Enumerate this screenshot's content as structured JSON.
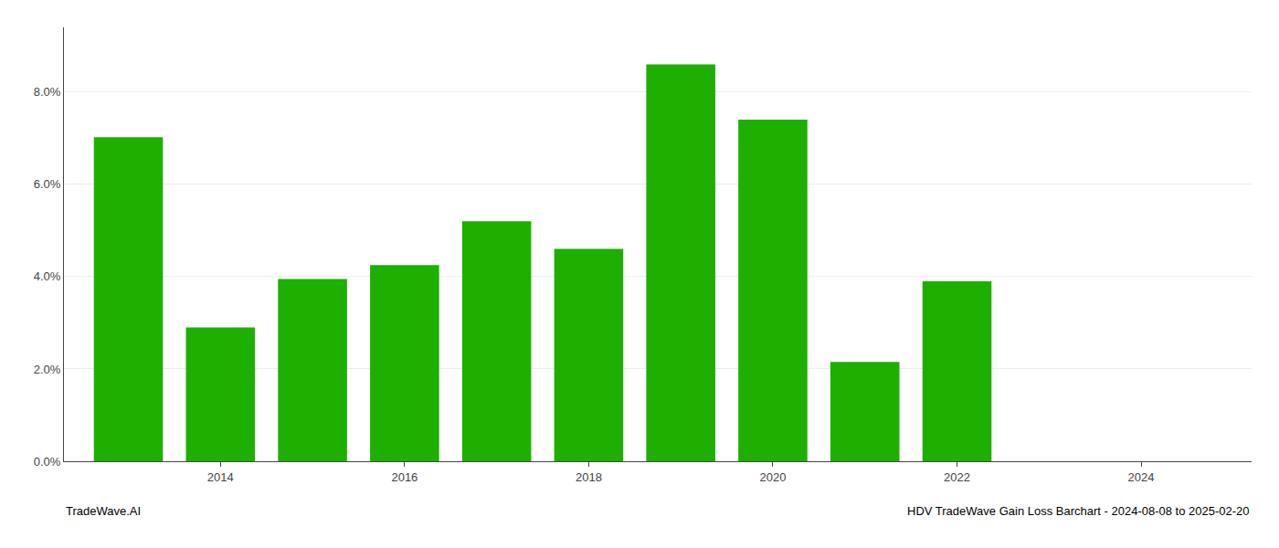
{
  "chart_data": {
    "type": "bar",
    "x": [
      2013,
      2014,
      2015,
      2016,
      2017,
      2018,
      2019,
      2020,
      2021,
      2022
    ],
    "values": [
      0.0702,
      0.029,
      0.0395,
      0.0425,
      0.052,
      0.046,
      0.086,
      0.074,
      0.0215,
      0.039
    ],
    "color": "#1db000",
    "xlim": [
      2012.3,
      2025.2
    ],
    "xticks": [
      2014,
      2016,
      2018,
      2020,
      2022,
      2024
    ],
    "ylim": [
      0.0,
      0.094
    ],
    "yticks": [
      {
        "value": 0.0,
        "label": "0.0%"
      },
      {
        "value": 0.02,
        "label": "2.0%"
      },
      {
        "value": 0.04,
        "label": "4.0%"
      },
      {
        "value": 0.06,
        "label": "6.0%"
      },
      {
        "value": 0.08,
        "label": "8.0%"
      }
    ],
    "grid": true,
    "annotations": [
      "TradeWave.AI",
      "HDV TradeWave Gain Loss Barchart - 2024-08-08 to 2025-02-20"
    ]
  }
}
